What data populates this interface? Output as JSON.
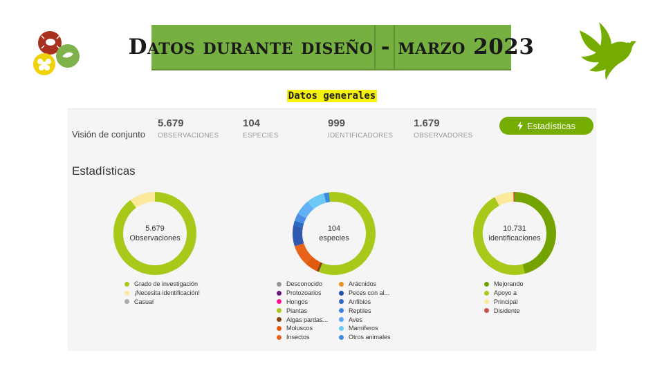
{
  "header": {
    "title": "Datos durante diseño - marzo 2023",
    "subtitle": "Datos generales"
  },
  "overview": {
    "label": "Visión de conjunto",
    "stats": [
      {
        "value": "5.679",
        "label": "OBSERVACIONES"
      },
      {
        "value": "104",
        "label": "ESPECIES"
      },
      {
        "value": "999",
        "label": "IDENTIFICADORES"
      },
      {
        "value": "1.679",
        "label": "OBSERVADORES"
      }
    ],
    "button_label": "Estadísticas"
  },
  "section_title": "Estadísticas",
  "chart_data": [
    {
      "type": "pie",
      "center_value": "5.679",
      "center_label": "Observaciones",
      "legend": [
        {
          "name": "Grado de investigación",
          "color": "#a8c81a"
        },
        {
          "name": "¡Necesita identificación!",
          "color": "#fbe99c"
        },
        {
          "name": "Casual",
          "color": "#aaaaaa"
        }
      ],
      "slices": [
        {
          "name": "Grado de investigación",
          "value": 0.9,
          "color": "#a8c81a"
        },
        {
          "name": "¡Necesita identificación!",
          "value": 0.1,
          "color": "#fbe99c"
        }
      ]
    },
    {
      "type": "pie",
      "center_value": "104",
      "center_label": "especies",
      "legend": [
        {
          "name": "Desconocido",
          "color": "#999999"
        },
        {
          "name": "Protozoarios",
          "color": "#691776"
        },
        {
          "name": "Hongos",
          "color": "#ff1493"
        },
        {
          "name": "Plantas",
          "color": "#a8c81a"
        },
        {
          "name": "Algas pardas...",
          "color": "#8b4513"
        },
        {
          "name": "Moluscos",
          "color": "#e25b0b"
        },
        {
          "name": "Insectos",
          "color": "#e8641a"
        },
        {
          "name": "Arácnidos",
          "color": "#e69320"
        },
        {
          "name": "Peces con al...",
          "color": "#1e4fa8"
        },
        {
          "name": "Anfibios",
          "color": "#2d68c4"
        },
        {
          "name": "Reptiles",
          "color": "#3e84e0"
        },
        {
          "name": "Aves",
          "color": "#58a6f5"
        },
        {
          "name": "Mamíferos",
          "color": "#6cc8f5"
        },
        {
          "name": "Otros animales",
          "color": "#3a8be0"
        }
      ],
      "slices": [
        {
          "name": "Plantas",
          "value": 0.56,
          "color": "#a8c81a"
        },
        {
          "name": "Algas pardas...",
          "value": 0.01,
          "color": "#8b4513"
        },
        {
          "name": "Moluscos",
          "value": 0.05,
          "color": "#e25b0b"
        },
        {
          "name": "Insectos",
          "value": 0.08,
          "color": "#e8641a"
        },
        {
          "name": "Peces con al...",
          "value": 0.08,
          "color": "#3058b0"
        },
        {
          "name": "Anfibios",
          "value": 0.02,
          "color": "#2d68c4"
        },
        {
          "name": "Reptiles",
          "value": 0.03,
          "color": "#4b8ee6"
        },
        {
          "name": "Aves",
          "value": 0.06,
          "color": "#62b0f5"
        },
        {
          "name": "Mamíferos",
          "value": 0.07,
          "color": "#6cc8f5"
        },
        {
          "name": "Otros animales",
          "value": 0.02,
          "color": "#3a8be0"
        },
        {
          "name": "Plantas",
          "value": 0.02,
          "color": "#a8c81a"
        }
      ]
    },
    {
      "type": "pie",
      "center_value": "10.731",
      "center_label": "identificaciones",
      "legend": [
        {
          "name": "Mejorando",
          "color": "#74a300"
        },
        {
          "name": "Apoyo a",
          "color": "#a8c81a"
        },
        {
          "name": "Principal",
          "color": "#fbe99c"
        },
        {
          "name": "Disidente",
          "color": "#c8504a"
        }
      ],
      "slices": [
        {
          "name": "Mejorando",
          "value": 0.46,
          "color": "#74a300"
        },
        {
          "name": "Apoyo a",
          "value": 0.46,
          "color": "#a8c81a"
        },
        {
          "name": "Principal",
          "value": 0.075,
          "color": "#fbe99c"
        },
        {
          "name": "Disidente",
          "value": 0.005,
          "color": "#c8504a"
        }
      ]
    }
  ]
}
